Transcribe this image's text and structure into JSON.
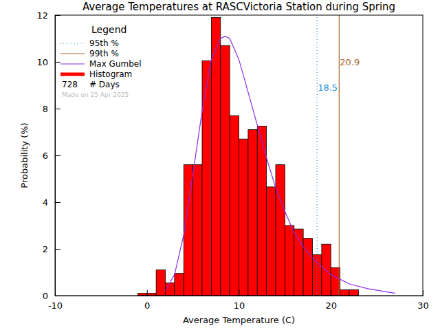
{
  "chart_data": {
    "type": "histogram",
    "title": "Average Temperatures at RASCVictoria Station during Spring",
    "x_label": "Average Temperature (C)",
    "y_label": "Probability (%)",
    "xlim": [
      -10,
      30
    ],
    "xticks": [
      -10,
      0,
      10,
      20,
      30
    ],
    "ylim": [
      0,
      12
    ],
    "yticks": [
      0,
      2,
      4,
      6,
      8,
      10,
      12
    ],
    "legend": "top-left",
    "legend_title": "Legend",
    "count": 728,
    "count_label": "# Days",
    "annotations": [
      {
        "text": "Made on 25 Apr 2025"
      }
    ],
    "series": [
      {
        "name": "95th %",
        "type": "vline",
        "color": "#2a8fd6",
        "line_style": "dotted",
        "data_labels": true,
        "x": [
          18.5
        ]
      },
      {
        "name": "99th %",
        "type": "vline",
        "color": "#a8642c",
        "line_style": "solid",
        "data_labels": true,
        "x": [
          20.9
        ]
      },
      {
        "name": "Max Gumbel",
        "type": "line",
        "color": "#8a2be2",
        "line_style": "solid",
        "x": [
          2,
          3,
          4,
          5,
          6,
          7,
          8,
          8.5,
          9,
          10,
          11,
          12,
          13,
          14,
          15,
          16,
          17,
          18,
          20,
          22,
          24,
          27
        ],
        "values": [
          0.2,
          0.9,
          2.6,
          5.2,
          7.9,
          10.1,
          11.0,
          11.1,
          11.0,
          10.1,
          8.7,
          7.3,
          5.9,
          4.6,
          3.6,
          2.7,
          2.1,
          1.6,
          0.9,
          0.5,
          0.3,
          0.1
        ]
      },
      {
        "name": "Histogram",
        "type": "histogram",
        "color": "#ff0000",
        "bins": [
          -1,
          0,
          1,
          2,
          3,
          4,
          5,
          6,
          7,
          8,
          9,
          10,
          11,
          12,
          13,
          14,
          15,
          16,
          17,
          18,
          19,
          20,
          21,
          22,
          23
        ],
        "values": [
          0.1,
          0.1,
          1.1,
          0.55,
          0.95,
          5.6,
          5.6,
          10.05,
          11.9,
          10.7,
          7.7,
          6.7,
          7.1,
          7.25,
          4.65,
          5.6,
          3.0,
          2.85,
          2.45,
          1.75,
          2.2,
          1.2,
          0.25,
          0.25
        ]
      }
    ]
  }
}
